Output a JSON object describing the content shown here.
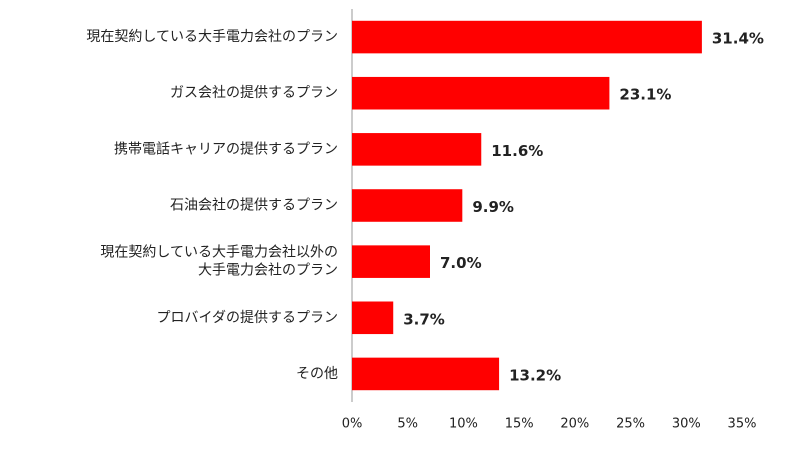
{
  "chart_data": {
    "type": "hbar",
    "categories": [
      "現在契約している大手電力会社のプラン",
      "ガス会社の提供するプラン",
      "携帯電話キャリアの提供するプラン",
      "石油会社の提供するプラン",
      "現在契約している大手電力会社以外の\n大手電力会社のプラン",
      "プロバイダの提供するプラン",
      "その他"
    ],
    "values": [
      31.4,
      23.1,
      11.6,
      9.9,
      7.0,
      3.7,
      13.2
    ],
    "value_labels": [
      "31.4%",
      "23.1%",
      "11.6%",
      "9.9%",
      "7.0%",
      "3.7%",
      "13.2%"
    ],
    "color": "#ff0000",
    "xlim": [
      0,
      35
    ],
    "xticks": [
      {
        "value": 0,
        "label": "0%"
      },
      {
        "value": 5,
        "label": "5%"
      },
      {
        "value": 10,
        "label": "10%"
      },
      {
        "value": 15,
        "label": "15%"
      },
      {
        "value": 20,
        "label": "20%"
      },
      {
        "value": 25,
        "label": "25%"
      },
      {
        "value": 30,
        "label": "30%"
      },
      {
        "value": 35,
        "label": "35%"
      }
    ],
    "grid": false
  }
}
